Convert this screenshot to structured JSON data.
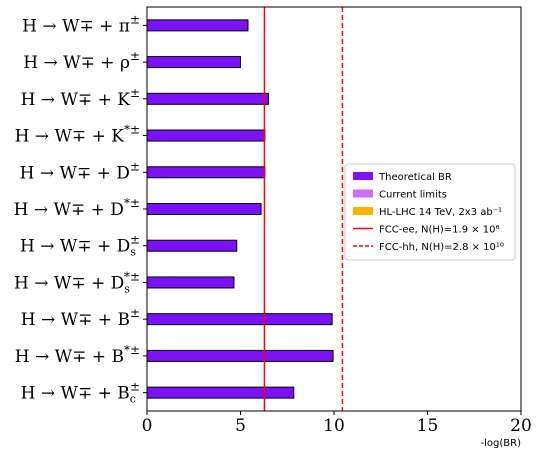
{
  "chart_data": {
    "type": "bar",
    "orientation": "horizontal",
    "categories": [
      "H → W∓ + π±",
      "H → W∓ + ρ±",
      "H → W∓ + K±",
      "H → W∓ + K*±",
      "H → W∓ + D±",
      "H → W∓ + D*±",
      "H → W∓ + Ds±",
      "H → W∓ + Ds*±",
      "H → W∓ + B±",
      "H → W∓ + B*±",
      "H → W∓ + Bc±"
    ],
    "category_parts": [
      {
        "main": "H → W∓ + π",
        "sub": "",
        "sup": "±"
      },
      {
        "main": "H → W∓ + ρ",
        "sub": "",
        "sup": "±"
      },
      {
        "main": "H → W∓ + K",
        "sub": "",
        "sup": "±"
      },
      {
        "main": "H → W∓ + K",
        "sub": "",
        "sup": "*±"
      },
      {
        "main": "H → W∓ + D",
        "sub": "",
        "sup": "±"
      },
      {
        "main": "H → W∓ + D",
        "sub": "",
        "sup": "*±"
      },
      {
        "main": "H → W∓ + D",
        "sub": "s",
        "sup": "±"
      },
      {
        "main": "H → W∓ + D",
        "sub": "s",
        "sup": "*±"
      },
      {
        "main": "H → W∓ + B",
        "sub": "",
        "sup": "±"
      },
      {
        "main": "H → W∓ + B",
        "sub": "",
        "sup": "*±"
      },
      {
        "main": "H → W∓ + B",
        "sub": "c",
        "sup": "±"
      }
    ],
    "series": [
      {
        "name": "Theoretical BR",
        "color": "#7b11f7",
        "values": [
          5.4,
          5.0,
          6.5,
          6.3,
          6.3,
          6.1,
          4.8,
          4.65,
          9.9,
          9.95,
          7.85
        ]
      }
    ],
    "xlabel": "-log(BR)",
    "xlim": [
      0,
      20
    ],
    "xticks": [
      "0",
      "5",
      "10",
      "15",
      "20"
    ],
    "xtick_values": [
      0,
      5,
      10,
      15,
      20
    ],
    "reference_lines": [
      {
        "name": "FCC-ee, N(H)=1.9 × 10⁶",
        "x": 6.28,
        "style": "solid",
        "color": "#ff0000"
      },
      {
        "name": "FCC-hh, N(H)=2.8 × 10¹⁰",
        "x": 10.45,
        "style": "dashed",
        "color": "#ff0000"
      }
    ],
    "legend": {
      "position": "center-right",
      "entries": [
        {
          "label": "Theoretical BR",
          "kind": "patch",
          "color": "#7b11f7"
        },
        {
          "label": "Current limits",
          "kind": "patch",
          "color": "#d06df7"
        },
        {
          "label": "HL-LHC 14 TeV, 2x3 ab⁻¹",
          "kind": "patch",
          "color": "#f7b500"
        },
        {
          "label": "FCC-ee, N(H)=1.9 × 10⁶",
          "kind": "line",
          "style": "solid",
          "color": "#ff0000"
        },
        {
          "label": "FCC-hh, N(H)=2.8 × 10¹⁰",
          "kind": "line",
          "style": "dashed",
          "color": "#ff0000"
        }
      ]
    },
    "grid": false
  }
}
